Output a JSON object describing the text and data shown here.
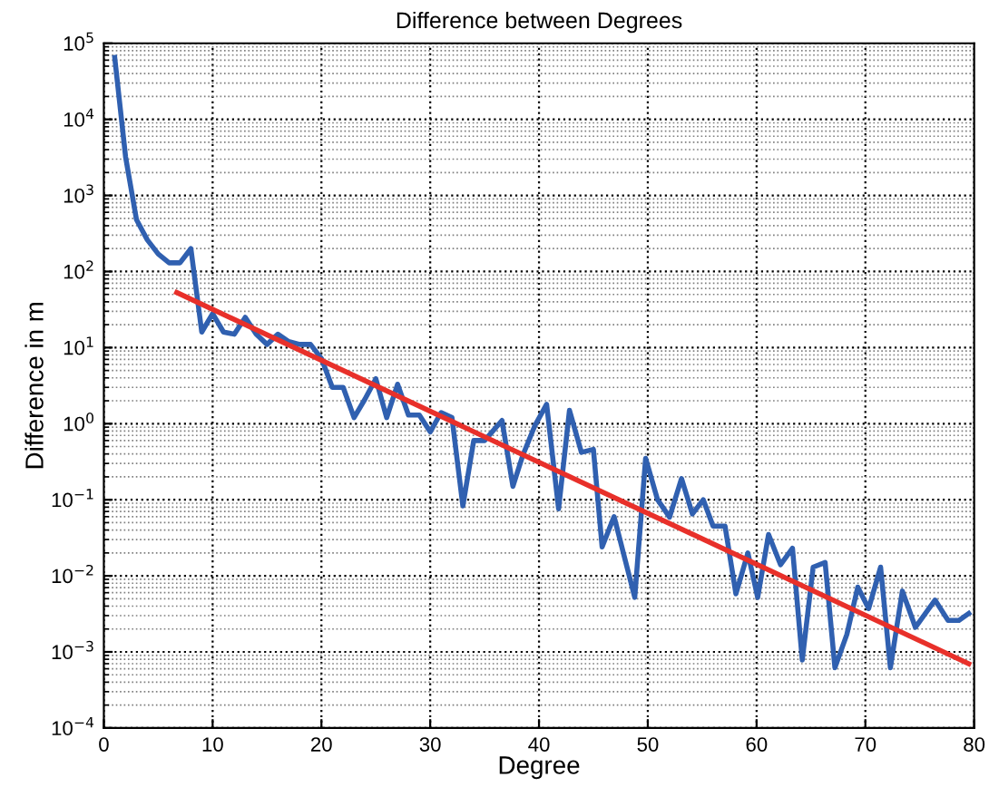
{
  "chart_data": {
    "type": "line",
    "title": "Difference between Degrees",
    "xlabel": "Degree",
    "ylabel": "Difference in m",
    "log": "y",
    "grid": true,
    "xlim": [
      0,
      80
    ],
    "xticks": [
      0,
      10,
      20,
      30,
      40,
      50,
      60,
      70,
      80
    ],
    "ylim": [
      0.0001,
      100000
    ],
    "yticks": [
      {
        "value": 0.0001,
        "label": "10$^{−4}$"
      },
      {
        "value": 0.001,
        "label": "10$^{−3}$"
      },
      {
        "value": 0.01,
        "label": "10$^{−2}$"
      },
      {
        "value": 0.1,
        "label": "10$^{−1}$"
      },
      {
        "value": 1,
        "label": "10$^{0}$"
      },
      {
        "value": 10,
        "label": "10$^{1}$"
      },
      {
        "value": 100,
        "label": "10$^{2}$"
      },
      {
        "value": 1000,
        "label": "10$^{3}$"
      },
      {
        "value": 10000,
        "label": "10$^{4}$"
      },
      {
        "value": 100000,
        "label": "10$^{5}$"
      }
    ],
    "series": [
      {
        "color": "#3060b0",
        "x": [
          1,
          2,
          3,
          4,
          5,
          6,
          7,
          8,
          9,
          10,
          11,
          12,
          13,
          14,
          15,
          16,
          17,
          18,
          19,
          20,
          21,
          22,
          23,
          24,
          25,
          26,
          27,
          28,
          29,
          30,
          31,
          32,
          33,
          34,
          35,
          36.6,
          37.6,
          38.5,
          39.6,
          40.7,
          41.8,
          42.8,
          43.9,
          45.0,
          45.8,
          46.9,
          48.8,
          49.8,
          50.9,
          52.0,
          53.1,
          54.1,
          55.1,
          56.0,
          57.1,
          58.1,
          59.2,
          60.1,
          61.1,
          62.2,
          63.3,
          64.2,
          65.2,
          66.3,
          67.2,
          68.3,
          69.3,
          70.3,
          71.4,
          72.3,
          73.4,
          74.6,
          76.4,
          77.6,
          78.6,
          79.5
        ],
        "values": [
          65000,
          3200,
          480,
          260,
          170,
          130,
          130,
          200,
          16,
          28,
          16,
          15,
          25,
          15,
          11,
          15,
          12,
          11,
          11,
          7.2,
          3.0,
          3.0,
          1.2,
          2.1,
          3.9,
          1.2,
          3.3,
          1.3,
          1.3,
          0.78,
          1.4,
          1.2,
          0.083,
          0.6,
          0.6,
          1.1,
          0.15,
          0.38,
          0.93,
          1.8,
          0.076,
          1.5,
          0.42,
          0.46,
          0.024,
          0.06,
          0.0052,
          0.35,
          0.1,
          0.059,
          0.19,
          0.065,
          0.1,
          0.045,
          0.045,
          0.0058,
          0.02,
          0.0052,
          0.035,
          0.014,
          0.023,
          0.00078,
          0.013,
          0.015,
          0.00062,
          0.0017,
          0.0071,
          0.0037,
          0.013,
          0.00062,
          0.0063,
          0.0021,
          0.0048,
          0.0026,
          0.0026,
          0.0032
        ]
      },
      {
        "color": "#e8302a",
        "x": [
          6.7,
          79.5
        ],
        "values": [
          53,
          0.0007
        ]
      }
    ]
  }
}
